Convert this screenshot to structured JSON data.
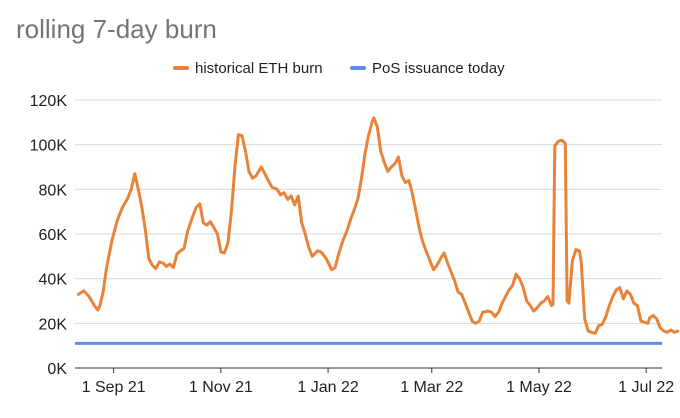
{
  "chart_data": {
    "type": "line",
    "title": "rolling 7-day burn",
    "xlabel": "",
    "ylabel": "",
    "ylim": [
      0,
      120000
    ],
    "y_ticks": [
      "0K",
      "20K",
      "40K",
      "60K",
      "80K",
      "100K",
      "120K"
    ],
    "y_tick_values": [
      0,
      20000,
      40000,
      60000,
      80000,
      100000,
      120000
    ],
    "x_ticks": [
      {
        "label": "1 Sep 21",
        "date": "2021-09-01"
      },
      {
        "label": "1 Nov 21",
        "date": "2021-11-01"
      },
      {
        "label": "1 Jan 22",
        "date": "2022-01-01"
      },
      {
        "label": "1 Mar 22",
        "date": "2022-03-01"
      },
      {
        "label": "1 May 22",
        "date": "2022-05-01"
      },
      {
        "label": "1 Jul 22",
        "date": "2022-07-01"
      }
    ],
    "xlim": [
      "2021-08-10",
      "2022-07-10"
    ],
    "grid": true,
    "legend_position": "top",
    "series": [
      {
        "name": "historical ETH burn",
        "color": "#e8833a",
        "points": [
          [
            "2021-08-12",
            33000
          ],
          [
            "2021-08-15",
            34500
          ],
          [
            "2021-08-18",
            32000
          ],
          [
            "2021-08-21",
            28000
          ],
          [
            "2021-08-23",
            26000
          ],
          [
            "2021-08-24",
            27500
          ],
          [
            "2021-08-26",
            34000
          ],
          [
            "2021-08-28",
            45000
          ],
          [
            "2021-08-31",
            57000
          ],
          [
            "2021-09-03",
            66000
          ],
          [
            "2021-09-06",
            72000
          ],
          [
            "2021-09-09",
            76000
          ],
          [
            "2021-09-11",
            80000
          ],
          [
            "2021-09-13",
            87000
          ],
          [
            "2021-09-15",
            80000
          ],
          [
            "2021-09-17",
            72000
          ],
          [
            "2021-09-19",
            62000
          ],
          [
            "2021-09-21",
            49000
          ],
          [
            "2021-09-23",
            46000
          ],
          [
            "2021-09-25",
            44500
          ],
          [
            "2021-09-27",
            47500
          ],
          [
            "2021-09-29",
            47000
          ],
          [
            "2021-10-01",
            45500
          ],
          [
            "2021-10-03",
            46500
          ],
          [
            "2021-10-05",
            45000
          ],
          [
            "2021-10-07",
            51000
          ],
          [
            "2021-10-09",
            52500
          ],
          [
            "2021-10-11",
            53500
          ],
          [
            "2021-10-13",
            61000
          ],
          [
            "2021-10-16",
            68000
          ],
          [
            "2021-10-18",
            72000
          ],
          [
            "2021-10-20",
            73500
          ],
          [
            "2021-10-22",
            65000
          ],
          [
            "2021-10-24",
            64000
          ],
          [
            "2021-10-26",
            65500
          ],
          [
            "2021-10-28",
            63000
          ],
          [
            "2021-10-30",
            60000
          ],
          [
            "2021-11-01",
            52000
          ],
          [
            "2021-11-03",
            51500
          ],
          [
            "2021-11-05",
            56000
          ],
          [
            "2021-11-07",
            70000
          ],
          [
            "2021-11-09",
            90000
          ],
          [
            "2021-11-11",
            104500
          ],
          [
            "2021-11-13",
            104000
          ],
          [
            "2021-11-15",
            97000
          ],
          [
            "2021-11-17",
            88000
          ],
          [
            "2021-11-19",
            85000
          ],
          [
            "2021-11-21",
            86000
          ],
          [
            "2021-11-24",
            90000
          ],
          [
            "2021-11-26",
            87000
          ],
          [
            "2021-11-28",
            84000
          ],
          [
            "2021-11-30",
            81000
          ],
          [
            "2021-12-03",
            80000
          ],
          [
            "2021-12-05",
            77500
          ],
          [
            "2021-12-07",
            78500
          ],
          [
            "2021-12-09",
            75500
          ],
          [
            "2021-12-11",
            77000
          ],
          [
            "2021-12-13",
            73000
          ],
          [
            "2021-12-15",
            77000
          ],
          [
            "2021-12-17",
            65000
          ],
          [
            "2021-12-19",
            60000
          ],
          [
            "2021-12-21",
            54000
          ],
          [
            "2021-12-23",
            50000
          ],
          [
            "2021-12-26",
            52500
          ],
          [
            "2021-12-28",
            52000
          ],
          [
            "2021-12-31",
            49000
          ],
          [
            "2022-01-03",
            44000
          ],
          [
            "2022-01-05",
            45000
          ],
          [
            "2022-01-07",
            51000
          ],
          [
            "2022-01-09",
            56000
          ],
          [
            "2022-01-12",
            62000
          ],
          [
            "2022-01-14",
            67000
          ],
          [
            "2022-01-16",
            71000
          ],
          [
            "2022-01-18",
            76000
          ],
          [
            "2022-01-20",
            85000
          ],
          [
            "2022-01-22",
            96000
          ],
          [
            "2022-01-24",
            104000
          ],
          [
            "2022-01-26",
            110000
          ],
          [
            "2022-01-27",
            112000
          ],
          [
            "2022-01-29",
            108000
          ],
          [
            "2022-01-31",
            97000
          ],
          [
            "2022-02-02",
            92000
          ],
          [
            "2022-02-04",
            88000
          ],
          [
            "2022-02-06",
            90000
          ],
          [
            "2022-02-08",
            91500
          ],
          [
            "2022-02-10",
            94500
          ],
          [
            "2022-02-12",
            86000
          ],
          [
            "2022-02-14",
            83000
          ],
          [
            "2022-02-16",
            84000
          ],
          [
            "2022-02-18",
            78000
          ],
          [
            "2022-02-20",
            70000
          ],
          [
            "2022-02-22",
            62000
          ],
          [
            "2022-02-24",
            56000
          ],
          [
            "2022-02-26",
            52000
          ],
          [
            "2022-02-28",
            48000
          ],
          [
            "2022-03-02",
            44000
          ],
          [
            "2022-03-04",
            46000
          ],
          [
            "2022-03-06",
            49000
          ],
          [
            "2022-03-08",
            51500
          ],
          [
            "2022-03-10",
            47000
          ],
          [
            "2022-03-12",
            43000
          ],
          [
            "2022-03-14",
            39000
          ],
          [
            "2022-03-16",
            34000
          ],
          [
            "2022-03-18",
            33000
          ],
          [
            "2022-03-20",
            29000
          ],
          [
            "2022-03-22",
            25000
          ],
          [
            "2022-03-24",
            21000
          ],
          [
            "2022-03-26",
            20000
          ],
          [
            "2022-03-28",
            21000
          ],
          [
            "2022-03-30",
            25000
          ],
          [
            "2022-04-02",
            25500
          ],
          [
            "2022-04-04",
            25000
          ],
          [
            "2022-04-06",
            23000
          ],
          [
            "2022-04-08",
            25000
          ],
          [
            "2022-04-10",
            29000
          ],
          [
            "2022-04-12",
            32000
          ],
          [
            "2022-04-14",
            35000
          ],
          [
            "2022-04-16",
            37000
          ],
          [
            "2022-04-18",
            42000
          ],
          [
            "2022-04-20",
            40000
          ],
          [
            "2022-04-22",
            36000
          ],
          [
            "2022-04-24",
            30000
          ],
          [
            "2022-04-26",
            28000
          ],
          [
            "2022-04-28",
            25500
          ],
          [
            "2022-04-30",
            27000
          ],
          [
            "2022-05-02",
            29000
          ],
          [
            "2022-05-04",
            30000
          ],
          [
            "2022-05-06",
            32000
          ],
          [
            "2022-05-08",
            28000
          ],
          [
            "2022-05-09",
            28500
          ],
          [
            "2022-05-10",
            99500
          ],
          [
            "2022-05-12",
            101500
          ],
          [
            "2022-05-14",
            102000
          ],
          [
            "2022-05-16",
            100500
          ],
          [
            "2022-05-17",
            30000
          ],
          [
            "2022-05-18",
            29000
          ],
          [
            "2022-05-20",
            48000
          ],
          [
            "2022-05-22",
            53000
          ],
          [
            "2022-05-24",
            52500
          ],
          [
            "2022-05-25",
            47500
          ],
          [
            "2022-05-27",
            22000
          ],
          [
            "2022-05-29",
            16500
          ],
          [
            "2022-05-31",
            16000
          ],
          [
            "2022-06-02",
            15500
          ],
          [
            "2022-06-04",
            19000
          ],
          [
            "2022-06-06",
            19500
          ],
          [
            "2022-06-08",
            23000
          ],
          [
            "2022-06-10",
            28000
          ],
          [
            "2022-06-12",
            32000
          ],
          [
            "2022-06-14",
            35000
          ],
          [
            "2022-06-16",
            36000
          ],
          [
            "2022-06-18",
            31000
          ],
          [
            "2022-06-20",
            34500
          ],
          [
            "2022-06-22",
            33000
          ],
          [
            "2022-06-24",
            29000
          ],
          [
            "2022-06-26",
            28000
          ],
          [
            "2022-06-28",
            21000
          ],
          [
            "2022-06-30",
            20500
          ],
          [
            "2022-07-02",
            20000
          ],
          [
            "2022-07-03",
            22500
          ],
          [
            "2022-07-05",
            23500
          ],
          [
            "2022-07-07",
            22000
          ],
          [
            "2022-07-09",
            18000
          ],
          [
            "2022-07-11",
            16500
          ],
          [
            "2022-07-13",
            16000
          ],
          [
            "2022-07-15",
            17000
          ],
          [
            "2022-07-17",
            16000
          ],
          [
            "2022-07-19",
            16500
          ]
        ]
      },
      {
        "name": "PoS issuance today",
        "color": "#5b8def",
        "constant": 11000
      }
    ]
  }
}
